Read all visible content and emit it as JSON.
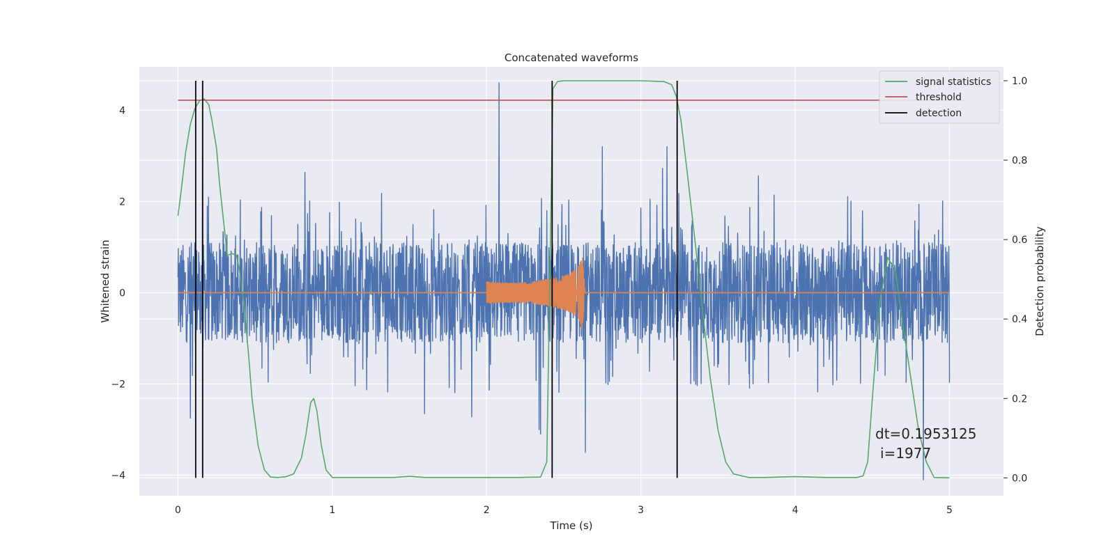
{
  "chart_data": {
    "type": "line",
    "title": "Concatenated waveforms",
    "xlabel": "Time (s)",
    "ylabel_left": "Whitened strain",
    "ylabel_right": "Detection probability",
    "xlim": [
      -0.25,
      5.35
    ],
    "ylim_left": [
      -4.45,
      4.95
    ],
    "ylim_right": [
      -0.045,
      1.035
    ],
    "x_ticks": [
      0,
      1,
      2,
      3,
      4,
      5
    ],
    "y_ticks_left": [
      -4,
      -2,
      0,
      2,
      4
    ],
    "y_ticks_left_labels": [
      "−4",
      "−2",
      "0",
      "2",
      "4"
    ],
    "y_ticks_right": [
      0.0,
      0.2,
      0.4,
      0.6,
      0.8,
      1.0
    ],
    "y_ticks_right_labels": [
      "0.0",
      "0.2",
      "0.4",
      "0.6",
      "0.8",
      "1.0"
    ],
    "grid": true,
    "legend_position": "top-right",
    "legend": [
      {
        "label": "signal statistics",
        "color": "#55a868"
      },
      {
        "label": "threshold",
        "color": "#c44e52"
      },
      {
        "label": "detection",
        "color": "#000000"
      }
    ],
    "annotation": {
      "line1": "dt=0.1953125",
      "line2": "i=1977",
      "x": 4.53,
      "y": -3.3
    },
    "whitened_strain": {
      "color": "#4c72b0",
      "x_range": [
        0,
        5
      ],
      "typical_envelope": [
        -1.1,
        1.1
      ],
      "notable_peaks": [
        {
          "x": 0.16,
          "y": 3.35
        },
        {
          "x": 2.08,
          "y": 4.6
        },
        {
          "x": 2.75,
          "y": 3.2
        },
        {
          "x": 3.17,
          "y": 3.2
        },
        {
          "x": 2.34,
          "y": -3.0
        },
        {
          "x": 2.35,
          "y": -3.1
        },
        {
          "x": 2.64,
          "y": -3.5
        },
        {
          "x": 0.08,
          "y": -2.75
        },
        {
          "x": 4.83,
          "y": -4.1
        }
      ]
    },
    "injected_waveform": {
      "color": "#dd8452",
      "x": [
        2.0,
        2.1,
        2.2,
        2.3,
        2.4,
        2.5,
        2.55,
        2.6,
        2.62,
        2.64,
        3.0
      ],
      "amplitude": [
        0.25,
        0.22,
        0.22,
        0.25,
        0.3,
        0.38,
        0.45,
        0.6,
        0.85,
        0.0,
        0.0
      ]
    },
    "series": [
      {
        "name": "signal statistics",
        "axis": "right",
        "color": "#55a868",
        "x": [
          0.0,
          0.02,
          0.05,
          0.08,
          0.11,
          0.14,
          0.17,
          0.2,
          0.22,
          0.25,
          0.27,
          0.3,
          0.32,
          0.35,
          0.38,
          0.4,
          0.43,
          0.46,
          0.48,
          0.52,
          0.56,
          0.6,
          0.65,
          0.7,
          0.75,
          0.8,
          0.83,
          0.86,
          0.88,
          0.9,
          0.93,
          0.96,
          1.0,
          1.2,
          1.4,
          1.5,
          1.6,
          1.8,
          2.0,
          2.2,
          2.35,
          2.39,
          2.41,
          2.43,
          2.46,
          2.5,
          2.8,
          3.0,
          3.15,
          3.2,
          3.23,
          3.26,
          3.3,
          3.35,
          3.4,
          3.45,
          3.5,
          3.55,
          3.6,
          3.7,
          3.8,
          4.0,
          4.2,
          4.4,
          4.44,
          4.47,
          4.5,
          4.55,
          4.6,
          4.65,
          4.7,
          4.75,
          4.8,
          4.85,
          4.9,
          5.0
        ],
        "values": [
          0.66,
          0.72,
          0.82,
          0.89,
          0.93,
          0.95,
          0.954,
          0.94,
          0.9,
          0.83,
          0.74,
          0.63,
          0.56,
          0.565,
          0.56,
          0.52,
          0.43,
          0.3,
          0.2,
          0.08,
          0.02,
          0.002,
          0.001,
          0.003,
          0.01,
          0.05,
          0.11,
          0.19,
          0.2,
          0.17,
          0.08,
          0.02,
          0.001,
          0.001,
          0.001,
          0.004,
          0.001,
          0.001,
          0.001,
          0.001,
          0.002,
          0.04,
          0.5,
          0.98,
          0.998,
          1.0,
          1.0,
          1.0,
          0.998,
          0.99,
          0.96,
          0.9,
          0.77,
          0.6,
          0.42,
          0.25,
          0.12,
          0.04,
          0.01,
          0.001,
          0.001,
          0.003,
          0.001,
          0.001,
          0.005,
          0.04,
          0.2,
          0.45,
          0.555,
          0.52,
          0.38,
          0.25,
          0.12,
          0.04,
          0.001,
          0.0
        ]
      },
      {
        "name": "threshold",
        "axis": "right",
        "color": "#c44e52",
        "x": [
          0.0,
          5.1
        ],
        "values": [
          0.951,
          0.951
        ]
      }
    ],
    "detections": [
      0.115,
      0.16,
      2.425,
      3.235
    ]
  }
}
